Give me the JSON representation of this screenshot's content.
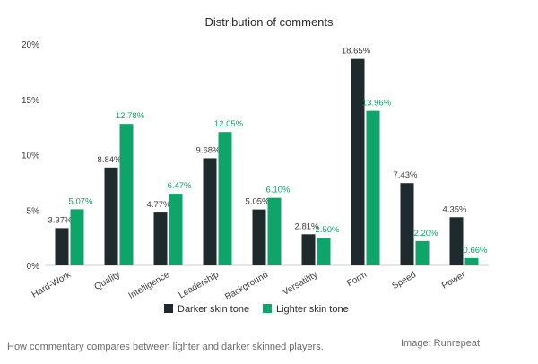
{
  "chart_data": {
    "type": "bar",
    "title": "Distribution of comments",
    "categories": [
      "Hard-Work",
      "Quality",
      "Intelligence",
      "Leadership",
      "Background",
      "Versatility",
      "Form",
      "Speed",
      "Power"
    ],
    "series": [
      {
        "name": "Darker skin tone",
        "color": "#1f2a2c",
        "values": [
          3.37,
          8.84,
          4.77,
          9.68,
          5.05,
          2.81,
          18.65,
          7.43,
          4.35
        ],
        "labels": [
          "3.37%",
          "8.84%",
          "4.77%",
          "9.68%",
          "5.05%",
          "2.81%",
          "18.65%",
          "7.43%",
          "4.35%"
        ]
      },
      {
        "name": "Lighter skin tone",
        "color": "#0ea46a",
        "values": [
          5.07,
          12.78,
          6.47,
          12.05,
          6.1,
          2.5,
          13.96,
          2.2,
          0.66
        ],
        "labels": [
          "5.07%",
          "12.78%",
          "6.47%",
          "12.05%",
          "6.10%",
          "2.50%",
          "13.96%",
          "2.20%",
          "0.66%"
        ]
      }
    ],
    "ylim": [
      0,
      20
    ],
    "yticks": [
      0,
      5,
      10,
      15,
      20
    ],
    "ytick_labels": [
      "0%",
      "5%",
      "10%",
      "15%",
      "20%"
    ],
    "xlabel": "",
    "ylabel": "",
    "grid": false,
    "legend_position": "bottom-center",
    "label_colors": {
      "dark": "#3a3a3a",
      "light": "#0ea46a"
    }
  },
  "caption": "How commentary compares between lighter and darker skinned players.",
  "credit": "Image: Runrepeat"
}
